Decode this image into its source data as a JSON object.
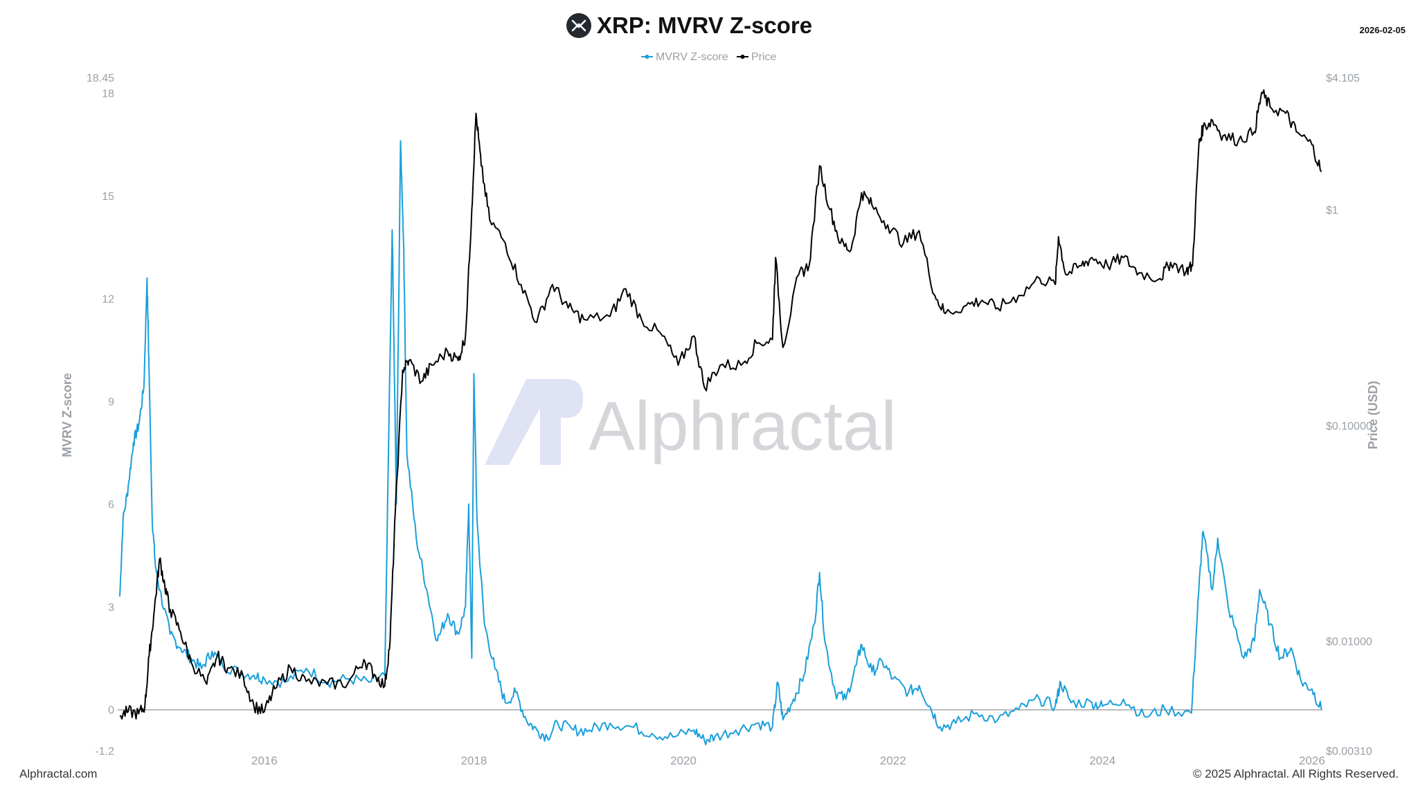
{
  "header": {
    "title": "XRP: MVRV Z-score",
    "date": "2026-02-05"
  },
  "footer": {
    "site": "Alphractal.com",
    "copyright": "© 2025 Alphractal. All Rights Reserved."
  },
  "watermark": {
    "text": "Alphractal",
    "mark": "AP"
  },
  "icons": {
    "logo": "xrp-logo-icon"
  },
  "colors": {
    "zscore": "#1a9fd9",
    "price": "#000000",
    "axis_text": "#9aa0a6"
  },
  "chart_data": {
    "type": "line",
    "legend": [
      "MVRV Z-score",
      "Price"
    ],
    "legend_position": "top-center",
    "grid": false,
    "xlabel": "",
    "ylabel_left": "MVRV Z-score",
    "ylabel_right": "Price (USD)",
    "x_ticks": [
      "2016",
      "2018",
      "2020",
      "2022",
      "2024",
      "2026"
    ],
    "x_range": [
      2014.6,
      2026.1
    ],
    "y_left_ticks": [
      "18.45",
      "18",
      "15",
      "12",
      "9",
      "6",
      "3",
      "0",
      "-1.2"
    ],
    "y_left_range": [
      -1.2,
      18.45
    ],
    "y_right_ticks": [
      "$4.105",
      "$1",
      "$0.10000",
      "$0.01000",
      "$0.00310"
    ],
    "y_right_range": [
      0.0031,
      4.105
    ],
    "y_right_scale": "log",
    "series": [
      {
        "name": "MVRV Z-score",
        "points": [
          [
            2014.62,
            3.3
          ],
          [
            2014.65,
            5.5
          ],
          [
            2014.7,
            6.5
          ],
          [
            2014.75,
            7.8
          ],
          [
            2014.8,
            8.3
          ],
          [
            2014.85,
            9.4
          ],
          [
            2014.88,
            12.6
          ],
          [
            2014.9,
            9.8
          ],
          [
            2014.93,
            5.5
          ],
          [
            2014.96,
            4.2
          ],
          [
            2015.0,
            3.5
          ],
          [
            2015.1,
            2.2
          ],
          [
            2015.2,
            1.8
          ],
          [
            2015.3,
            1.5
          ],
          [
            2015.4,
            1.2
          ],
          [
            2015.5,
            1.7
          ],
          [
            2015.6,
            1.3
          ],
          [
            2015.75,
            1.1
          ],
          [
            2015.9,
            1.0
          ],
          [
            2016.0,
            0.9
          ],
          [
            2016.2,
            0.8
          ],
          [
            2016.4,
            1.2
          ],
          [
            2016.6,
            0.8
          ],
          [
            2016.8,
            0.9
          ],
          [
            2017.0,
            0.8
          ],
          [
            2017.15,
            1.0
          ],
          [
            2017.22,
            14.0
          ],
          [
            2017.26,
            6.0
          ],
          [
            2017.3,
            16.6
          ],
          [
            2017.33,
            13.5
          ],
          [
            2017.36,
            7.5
          ],
          [
            2017.45,
            5.0
          ],
          [
            2017.55,
            3.5
          ],
          [
            2017.65,
            2.0
          ],
          [
            2017.75,
            2.8
          ],
          [
            2017.85,
            2.2
          ],
          [
            2017.92,
            3.0
          ],
          [
            2017.95,
            6.0
          ],
          [
            2017.98,
            1.5
          ],
          [
            2018.0,
            9.8
          ],
          [
            2018.03,
            5.5
          ],
          [
            2018.1,
            2.5
          ],
          [
            2018.2,
            1.2
          ],
          [
            2018.3,
            0.2
          ],
          [
            2018.4,
            0.5
          ],
          [
            2018.5,
            -0.3
          ],
          [
            2018.6,
            -0.6
          ],
          [
            2018.7,
            -0.8
          ],
          [
            2018.8,
            -0.4
          ],
          [
            2018.95,
            -0.6
          ],
          [
            2019.1,
            -0.6
          ],
          [
            2019.3,
            -0.4
          ],
          [
            2019.5,
            -0.5
          ],
          [
            2019.7,
            -0.7
          ],
          [
            2019.9,
            -0.8
          ],
          [
            2020.1,
            -0.6
          ],
          [
            2020.2,
            -0.9
          ],
          [
            2020.3,
            -0.8
          ],
          [
            2020.5,
            -0.6
          ],
          [
            2020.7,
            -0.4
          ],
          [
            2020.85,
            -0.5
          ],
          [
            2020.9,
            0.8
          ],
          [
            2020.95,
            -0.3
          ],
          [
            2021.05,
            0.3
          ],
          [
            2021.15,
            1.0
          ],
          [
            2021.25,
            2.5
          ],
          [
            2021.3,
            4.0
          ],
          [
            2021.35,
            2.0
          ],
          [
            2021.45,
            0.5
          ],
          [
            2021.55,
            0.3
          ],
          [
            2021.65,
            1.3
          ],
          [
            2021.7,
            1.9
          ],
          [
            2021.8,
            1.1
          ],
          [
            2021.9,
            1.4
          ],
          [
            2022.0,
            0.9
          ],
          [
            2022.15,
            0.5
          ],
          [
            2022.25,
            0.7
          ],
          [
            2022.35,
            0.1
          ],
          [
            2022.45,
            -0.5
          ],
          [
            2022.6,
            -0.4
          ],
          [
            2022.8,
            -0.1
          ],
          [
            2023.0,
            -0.3
          ],
          [
            2023.2,
            0.0
          ],
          [
            2023.4,
            0.3
          ],
          [
            2023.55,
            0.1
          ],
          [
            2023.6,
            0.8
          ],
          [
            2023.7,
            0.2
          ],
          [
            2023.9,
            0.2
          ],
          [
            2024.0,
            0.1
          ],
          [
            2024.2,
            0.3
          ],
          [
            2024.4,
            -0.2
          ],
          [
            2024.6,
            0.0
          ],
          [
            2024.85,
            -0.1
          ],
          [
            2024.92,
            3.5
          ],
          [
            2024.96,
            5.2
          ],
          [
            2025.05,
            3.5
          ],
          [
            2025.1,
            5.0
          ],
          [
            2025.2,
            3.0
          ],
          [
            2025.35,
            1.5
          ],
          [
            2025.45,
            2.0
          ],
          [
            2025.5,
            3.5
          ],
          [
            2025.6,
            2.5
          ],
          [
            2025.7,
            1.5
          ],
          [
            2025.8,
            1.8
          ],
          [
            2025.9,
            0.8
          ],
          [
            2026.0,
            0.6
          ],
          [
            2026.09,
            0.0
          ]
        ]
      },
      {
        "name": "Price",
        "points": [
          [
            2014.62,
            0.0045
          ],
          [
            2014.7,
            0.0047
          ],
          [
            2014.8,
            0.0046
          ],
          [
            2014.86,
            0.005
          ],
          [
            2014.9,
            0.0085
          ],
          [
            2014.95,
            0.014
          ],
          [
            2015.0,
            0.024
          ],
          [
            2015.05,
            0.018
          ],
          [
            2015.1,
            0.014
          ],
          [
            2015.2,
            0.011
          ],
          [
            2015.3,
            0.008
          ],
          [
            2015.45,
            0.0063
          ],
          [
            2015.55,
            0.0085
          ],
          [
            2015.65,
            0.0075
          ],
          [
            2015.8,
            0.0068
          ],
          [
            2015.9,
            0.005
          ],
          [
            2016.0,
            0.0047
          ],
          [
            2016.1,
            0.006
          ],
          [
            2016.25,
            0.0075
          ],
          [
            2016.4,
            0.0065
          ],
          [
            2016.6,
            0.0063
          ],
          [
            2016.8,
            0.0064
          ],
          [
            2016.95,
            0.0082
          ],
          [
            2017.05,
            0.007
          ],
          [
            2017.15,
            0.0062
          ],
          [
            2017.2,
            0.01
          ],
          [
            2017.25,
            0.04
          ],
          [
            2017.32,
            0.18
          ],
          [
            2017.38,
            0.2
          ],
          [
            2017.5,
            0.16
          ],
          [
            2017.6,
            0.19
          ],
          [
            2017.75,
            0.22
          ],
          [
            2017.85,
            0.2
          ],
          [
            2017.92,
            0.26
          ],
          [
            2017.98,
            1.0
          ],
          [
            2018.02,
            2.8
          ],
          [
            2018.07,
            1.6
          ],
          [
            2018.15,
            0.9
          ],
          [
            2018.3,
            0.7
          ],
          [
            2018.45,
            0.45
          ],
          [
            2018.6,
            0.3
          ],
          [
            2018.75,
            0.45
          ],
          [
            2018.9,
            0.35
          ],
          [
            2019.05,
            0.31
          ],
          [
            2019.3,
            0.32
          ],
          [
            2019.45,
            0.43
          ],
          [
            2019.6,
            0.31
          ],
          [
            2019.8,
            0.26
          ],
          [
            2019.95,
            0.19
          ],
          [
            2020.1,
            0.26
          ],
          [
            2020.2,
            0.15
          ],
          [
            2020.35,
            0.19
          ],
          [
            2020.55,
            0.19
          ],
          [
            2020.7,
            0.24
          ],
          [
            2020.85,
            0.25
          ],
          [
            2020.88,
            0.6
          ],
          [
            2020.95,
            0.23
          ],
          [
            2021.1,
            0.5
          ],
          [
            2021.2,
            0.55
          ],
          [
            2021.3,
            1.6
          ],
          [
            2021.4,
            1.0
          ],
          [
            2021.5,
            0.7
          ],
          [
            2021.6,
            0.65
          ],
          [
            2021.7,
            1.2
          ],
          [
            2021.8,
            1.05
          ],
          [
            2021.95,
            0.85
          ],
          [
            2022.1,
            0.7
          ],
          [
            2022.25,
            0.8
          ],
          [
            2022.4,
            0.4
          ],
          [
            2022.5,
            0.33
          ],
          [
            2022.7,
            0.36
          ],
          [
            2022.85,
            0.38
          ],
          [
            2023.0,
            0.35
          ],
          [
            2023.2,
            0.4
          ],
          [
            2023.4,
            0.48
          ],
          [
            2023.55,
            0.45
          ],
          [
            2023.58,
            0.75
          ],
          [
            2023.65,
            0.5
          ],
          [
            2023.8,
            0.55
          ],
          [
            2023.9,
            0.6
          ],
          [
            2024.05,
            0.55
          ],
          [
            2024.2,
            0.6
          ],
          [
            2024.35,
            0.51
          ],
          [
            2024.55,
            0.48
          ],
          [
            2024.65,
            0.57
          ],
          [
            2024.8,
            0.52
          ],
          [
            2024.86,
            0.55
          ],
          [
            2024.92,
            2.0
          ],
          [
            2024.96,
            2.4
          ],
          [
            2025.05,
            2.6
          ],
          [
            2025.15,
            2.2
          ],
          [
            2025.3,
            2.1
          ],
          [
            2025.45,
            2.3
          ],
          [
            2025.52,
            3.5
          ],
          [
            2025.6,
            3.0
          ],
          [
            2025.75,
            2.8
          ],
          [
            2025.85,
            2.3
          ],
          [
            2026.0,
            2.0
          ],
          [
            2026.09,
            1.5
          ]
        ]
      }
    ]
  }
}
